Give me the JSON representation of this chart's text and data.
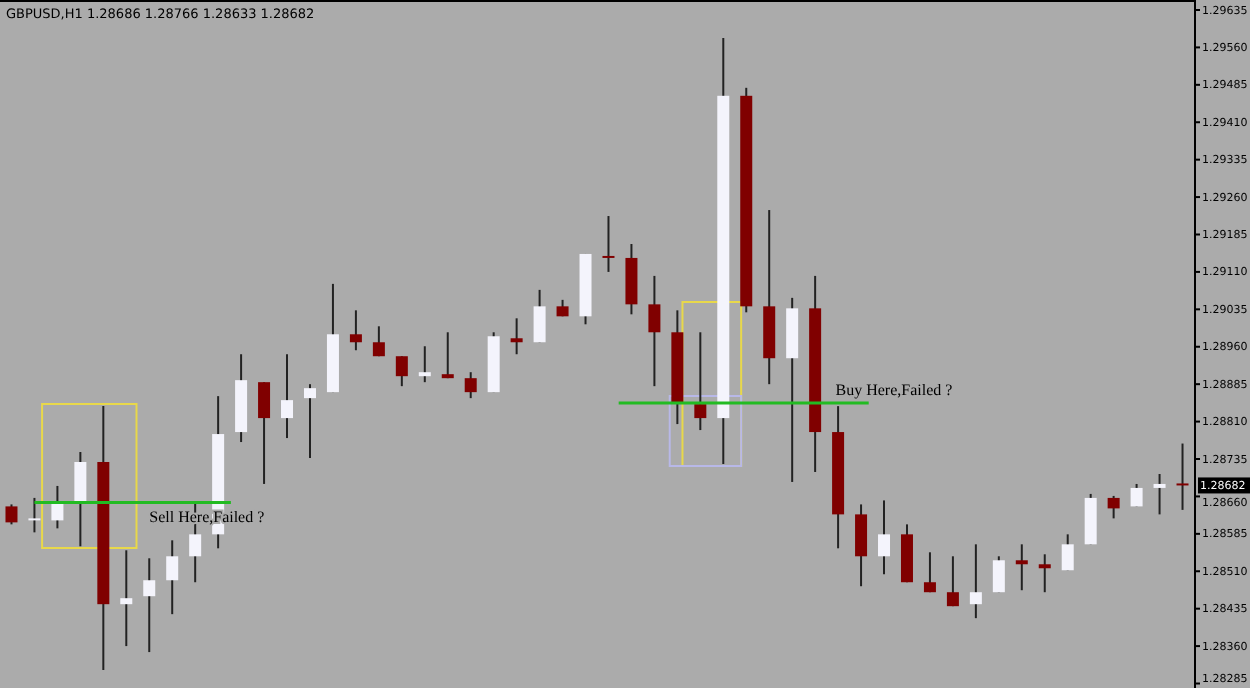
{
  "chart_data": {
    "type": "candlestick",
    "title": "GBPUSD,H1 1.28686 1.28766 1.28633 1.28682",
    "categories": [
      null,
      null,
      null,
      null,
      null,
      null,
      null,
      null,
      null,
      null,
      null,
      null,
      null,
      null,
      null,
      null,
      null,
      null,
      null,
      null,
      null,
      null,
      null,
      null,
      null,
      null,
      null,
      null,
      null,
      null,
      null,
      null,
      null,
      null,
      null,
      null,
      null,
      null,
      null,
      null,
      null,
      null,
      null,
      null,
      null,
      null,
      null,
      null,
      null,
      null,
      null,
      null
    ],
    "ohlc": [
      [
        1.2864,
        1.28644,
        1.28604,
        1.28608
      ],
      [
        1.28616,
        1.28657,
        1.28588,
        1.28616
      ],
      [
        1.28612,
        1.28681,
        1.28596,
        1.28648
      ],
      [
        1.28648,
        1.28749,
        1.2856,
        1.28729
      ],
      [
        1.28729,
        1.28841,
        1.28312,
        1.28444
      ],
      [
        1.28444,
        1.28552,
        1.2836,
        1.28456
      ],
      [
        1.2846,
        1.28536,
        1.28348,
        1.28492
      ],
      [
        1.28492,
        1.28572,
        1.28424,
        1.2854
      ],
      [
        1.2854,
        1.28648,
        1.28488,
        1.28584
      ],
      [
        1.28584,
        1.28861,
        1.28556,
        1.28785
      ],
      [
        1.28789,
        1.28945,
        1.28769,
        1.28893
      ],
      [
        1.28889,
        1.28889,
        1.28685,
        1.28817
      ],
      [
        1.28817,
        1.28945,
        1.28777,
        1.28853
      ],
      [
        1.28857,
        1.28885,
        1.28737,
        1.28877
      ],
      [
        1.28869,
        1.29086,
        1.28869,
        1.28985
      ],
      [
        1.28985,
        1.29033,
        1.28953,
        1.28969
      ],
      [
        1.28969,
        1.29001,
        1.28941,
        1.28941
      ],
      [
        1.28941,
        1.28941,
        1.28881,
        1.28901
      ],
      [
        1.28901,
        1.28961,
        1.28889,
        1.28909
      ],
      [
        1.28905,
        1.28989,
        1.28897,
        1.28897
      ],
      [
        1.28897,
        1.28909,
        1.28857,
        1.28869
      ],
      [
        1.28869,
        1.28989,
        1.28869,
        1.28981
      ],
      [
        1.28977,
        1.29017,
        1.28945,
        1.28969
      ],
      [
        1.28969,
        1.29074,
        1.28969,
        1.29041
      ],
      [
        1.29041,
        1.29054,
        1.29021,
        1.29021
      ],
      [
        1.29021,
        1.29146,
        1.29005,
        1.29146
      ],
      [
        1.29142,
        1.29222,
        1.2911,
        1.29138
      ],
      [
        1.29138,
        1.29166,
        1.29025,
        1.29045
      ],
      [
        1.29045,
        1.29102,
        1.28881,
        1.28989
      ],
      [
        1.28989,
        1.29033,
        1.28805,
        1.28849
      ],
      [
        1.28845,
        1.28989,
        1.28793,
        1.28817
      ],
      [
        1.28817,
        1.29579,
        1.28725,
        1.29463
      ],
      [
        1.29463,
        1.29479,
        1.29029,
        1.29041
      ],
      [
        1.29041,
        1.29234,
        1.28885,
        1.28937
      ],
      [
        1.28937,
        1.29058,
        1.28689,
        1.29037
      ],
      [
        1.29037,
        1.29102,
        1.28709,
        1.28789
      ],
      [
        1.28789,
        1.28841,
        1.28556,
        1.28624
      ],
      [
        1.28624,
        1.28644,
        1.2848,
        1.2854
      ],
      [
        1.2854,
        1.28652,
        1.28504,
        1.28584
      ],
      [
        1.28584,
        1.28604,
        1.28488,
        1.28488
      ],
      [
        1.28488,
        1.28548,
        1.28468,
        1.28468
      ],
      [
        1.28468,
        1.2854,
        1.2844,
        1.2844
      ],
      [
        1.28444,
        1.28564,
        1.28416,
        1.28468
      ],
      [
        1.28468,
        1.2854,
        1.28468,
        1.28532
      ],
      [
        1.28532,
        1.28564,
        1.28472,
        1.28524
      ],
      [
        1.28524,
        1.28544,
        1.28468,
        1.28516
      ],
      [
        1.28512,
        1.28584,
        1.28512,
        1.28564
      ],
      [
        1.28564,
        1.28665,
        1.28564,
        1.28657
      ],
      [
        1.28657,
        1.28661,
        1.28616,
        1.28636
      ],
      [
        1.2864,
        1.28685,
        1.2864,
        1.28677
      ],
      [
        1.28677,
        1.28705,
        1.28624,
        1.28685
      ],
      [
        1.28686,
        1.28766,
        1.28633,
        1.28682
      ]
    ],
    "ylim": [
      1.28276,
      1.29647
    ],
    "yticks": [
      1.29635,
      {
        "value": 1.2956,
        "label": "1.29560"
      },
      1.29485,
      {
        "value": 1.2941,
        "label": "1.29410"
      },
      1.29335,
      {
        "value": 1.2926,
        "label": "1.29260"
      },
      1.29185,
      {
        "value": 1.2911,
        "label": "1.29110"
      },
      1.29035,
      {
        "value": 1.2896,
        "label": "1.28960"
      },
      1.28885,
      {
        "value": 1.2881,
        "label": "1.28810"
      },
      1.28735,
      {
        "value": 1.2866,
        "label": "1.28660"
      },
      1.28585,
      {
        "value": 1.2851,
        "label": "1.28510"
      },
      1.28435,
      {
        "value": 1.2836,
        "label": "1.28360"
      },
      1.28285
    ],
    "annotations": [
      {
        "text": "1.28682",
        "y": 1.28682
      }
    ],
    "ref_lines": [
      {
        "axis": "y",
        "value": 1.28648,
        "label": "Sell Here,Failed ?",
        "color": "#22bb22"
      },
      {
        "axis": "y",
        "value": 1.28847,
        "label": "Buy Here,Failed ?",
        "color": "#22bb22"
      }
    ],
    "grid": false
  }
}
